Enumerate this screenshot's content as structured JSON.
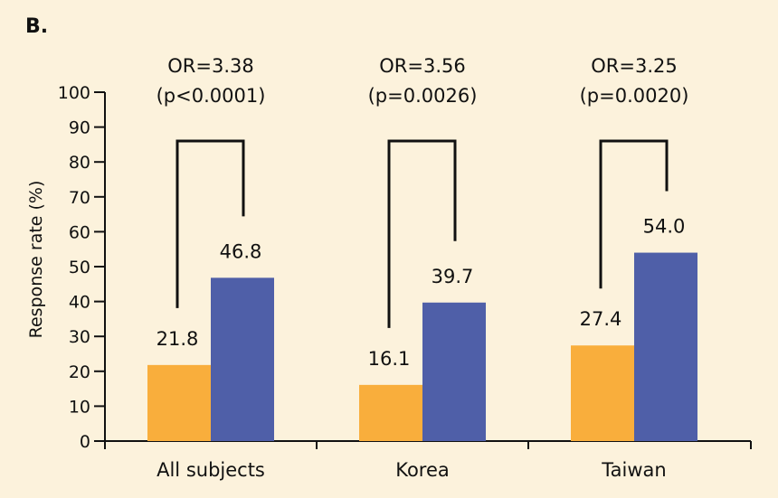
{
  "panel_label": "B.",
  "colors": {
    "series_a": "#f9ae3c",
    "series_b": "#4f5fa8",
    "axis": "#111111",
    "background": "#fcf2dc"
  },
  "chart_data": {
    "type": "bar",
    "categories": [
      "All subjects",
      "Korea",
      "Taiwan"
    ],
    "series": [
      {
        "values": [
          21.8,
          16.1,
          27.4
        ],
        "color": "#f9ae3c"
      },
      {
        "values": [
          46.8,
          39.7,
          54.0
        ],
        "color": "#4f5fa8"
      }
    ],
    "value_labels": [
      [
        "21.8",
        "16.1",
        "27.4"
      ],
      [
        "46.8",
        "39.7",
        "54.0"
      ]
    ],
    "annotations": [
      {
        "or": "OR=3.38",
        "p": "(p<0.0001)"
      },
      {
        "or": "OR=3.56",
        "p": "(p=0.0026)"
      },
      {
        "or": "OR=3.25",
        "p": "(p=0.0020)"
      }
    ],
    "ylabel": "Response rate (%)",
    "xlabel": "",
    "ylim": [
      0,
      100
    ],
    "yticks": [
      0,
      10,
      20,
      30,
      40,
      50,
      60,
      70,
      80,
      90,
      100
    ],
    "grid": false,
    "bracket_top_value": 86
  }
}
